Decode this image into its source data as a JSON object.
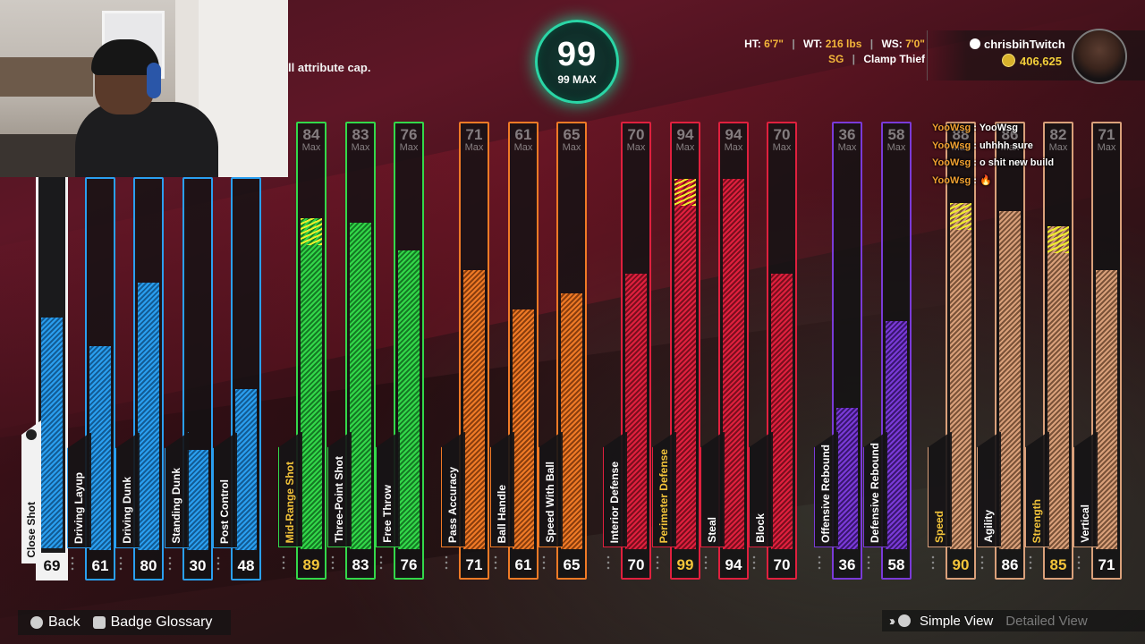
{
  "overall": {
    "value": "99",
    "max_label": "99 MAX"
  },
  "cap_text": "ll attribute cap.",
  "player": {
    "ht_label": "HT:",
    "ht": "6'7\"",
    "wt_label": "WT:",
    "wt": "216 lbs",
    "ws_label": "WS:",
    "ws": "7'0\"",
    "position": "SG",
    "archetype": "Clamp Thief",
    "username": "chrisbihTwitch",
    "vc": "406,625"
  },
  "attributes": [
    {
      "name": "Close Shot",
      "value": "69",
      "max": "",
      "fill": 69,
      "color": "#2a9ff0",
      "dark": "#135c95",
      "selected": true,
      "gold": false
    },
    {
      "name": "Driving Layup",
      "value": "61",
      "max": "",
      "fill": 61,
      "color": "#2a9ff0",
      "dark": "#135c95",
      "gold": false
    },
    {
      "name": "Driving Dunk",
      "value": "80",
      "max": "",
      "fill": 80,
      "color": "#2a9ff0",
      "dark": "#135c95",
      "gold": false
    },
    {
      "name": "Standing Dunk",
      "value": "30",
      "max": "",
      "fill": 30,
      "color": "#2a9ff0",
      "dark": "#135c95",
      "gold": false
    },
    {
      "name": "Post Control",
      "value": "48",
      "max": "",
      "fill": 48,
      "color": "#2a9ff0",
      "dark": "#135c95",
      "gold": false
    },
    {
      "name": "Mid-Range Shot",
      "value": "89",
      "max": "84",
      "fill": 84,
      "cap": 89,
      "color": "#33d84a",
      "dark": "#157a24",
      "gold": true
    },
    {
      "name": "Three-Point Shot",
      "value": "83",
      "max": "83",
      "fill": 83,
      "color": "#33d84a",
      "dark": "#157a24",
      "gold": false
    },
    {
      "name": "Free Throw",
      "value": "76",
      "max": "76",
      "fill": 76,
      "color": "#33d84a",
      "dark": "#157a24",
      "gold": false
    },
    {
      "name": "Pass Accuracy",
      "value": "71",
      "max": "71",
      "fill": 71,
      "color": "#f07a26",
      "dark": "#8a3e0e",
      "gold": false
    },
    {
      "name": "Ball Handle",
      "value": "61",
      "max": "61",
      "fill": 61,
      "color": "#f07a26",
      "dark": "#8a3e0e",
      "gold": false
    },
    {
      "name": "Speed With Ball",
      "value": "65",
      "max": "65",
      "fill": 65,
      "color": "#f07a26",
      "dark": "#8a3e0e",
      "gold": false
    },
    {
      "name": "Interior Defense",
      "value": "70",
      "max": "70",
      "fill": 70,
      "color": "#e0203e",
      "dark": "#7a0e1e",
      "gold": false
    },
    {
      "name": "Perimeter Defense",
      "value": "99",
      "max": "94",
      "fill": 94,
      "cap": 99,
      "color": "#e0203e",
      "dark": "#7a0e1e",
      "gold": true
    },
    {
      "name": "Steal",
      "value": "94",
      "max": "94",
      "fill": 94,
      "color": "#e0203e",
      "dark": "#7a0e1e",
      "gold": false
    },
    {
      "name": "Block",
      "value": "70",
      "max": "70",
      "fill": 70,
      "color": "#e0203e",
      "dark": "#7a0e1e",
      "gold": false
    },
    {
      "name": "Offensive Rebound",
      "value": "36",
      "max": "36",
      "fill": 36,
      "color": "#7a3ad8",
      "dark": "#3a1670",
      "gold": false
    },
    {
      "name": "Defensive Rebound",
      "value": "58",
      "max": "58",
      "fill": 58,
      "color": "#7a3ad8",
      "dark": "#3a1670",
      "gold": false
    },
    {
      "name": "Speed",
      "value": "90",
      "max": "88",
      "fill": 88,
      "cap": 90,
      "color": "#d9a07a",
      "dark": "#7a5238",
      "gold": true
    },
    {
      "name": "Agility",
      "value": "86",
      "max": "86",
      "fill": 86,
      "color": "#d9a07a",
      "dark": "#7a5238",
      "gold": false
    },
    {
      "name": "Strength",
      "value": "85",
      "max": "82",
      "fill": 82,
      "cap": 85,
      "color": "#d9a07a",
      "dark": "#7a5238",
      "gold": true
    },
    {
      "name": "Vertical",
      "value": "71",
      "max": "71",
      "fill": 71,
      "color": "#d9a07a",
      "dark": "#7a5238",
      "gold": false
    }
  ],
  "max_label": "Max",
  "chat": [
    {
      "user": "YooWsg",
      "text": ": YooWsg"
    },
    {
      "user": "YooWsg",
      "text": ": uhhhh sure"
    },
    {
      "user": "YooWsg",
      "text": ": o shit new build"
    },
    {
      "user": "YooWsg",
      "text": ": 🔥"
    }
  ],
  "footer": {
    "back": "Back",
    "badge_glossary": "Badge Glossary",
    "simple_view": "Simple View",
    "detailed_view": "Detailed View"
  },
  "colors": {
    "rating_ring": "#2ad6a6",
    "gold_text": "#f3c43a"
  },
  "icons": {
    "back": "circle-button-icon",
    "glossary": "square-button-icon",
    "simple": "triangle-button-icon",
    "coin": "vc-coin-icon"
  }
}
